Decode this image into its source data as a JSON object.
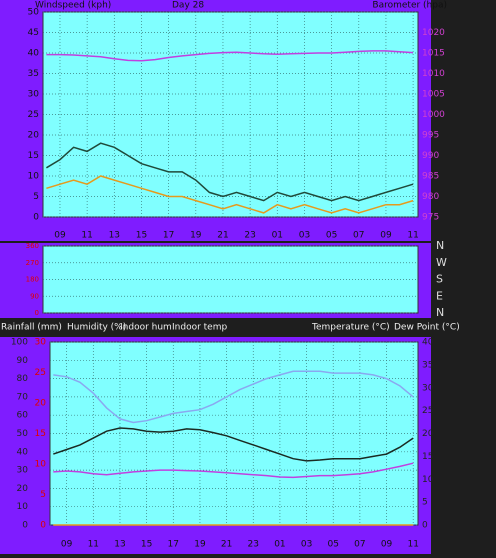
{
  "chart_data": [
    {
      "type": "line",
      "title": "Day 28",
      "ylabel": "Windspeed (kph)",
      "y2label": "Barometer (hpa)",
      "grid": true,
      "x": [
        -1,
        0,
        1,
        2,
        3,
        4,
        5,
        6,
        7,
        8,
        9,
        10,
        11,
        12,
        13,
        14,
        15,
        16,
        17,
        18,
        19,
        20,
        21,
        22,
        23,
        24,
        25,
        26
      ],
      "xlim": [
        -1.25,
        26.36
      ],
      "xticks": [
        {
          "value": 0,
          "label": "09"
        },
        {
          "value": 2,
          "label": "11"
        },
        {
          "value": 4,
          "label": "13"
        },
        {
          "value": 6,
          "label": "15"
        },
        {
          "value": 8,
          "label": "17"
        },
        {
          "value": 10,
          "label": "19"
        },
        {
          "value": 12,
          "label": "21"
        },
        {
          "value": 14,
          "label": "23"
        },
        {
          "value": 16,
          "label": "01"
        },
        {
          "value": 18,
          "label": "03"
        },
        {
          "value": 20,
          "label": "05"
        },
        {
          "value": 22,
          "label": "07"
        },
        {
          "value": 24,
          "label": "09"
        },
        {
          "value": 26,
          "label": "11"
        }
      ],
      "ylim": [
        0,
        50
      ],
      "yticks": [
        0,
        5,
        10,
        15,
        20,
        25,
        30,
        35,
        40,
        45,
        50
      ],
      "y2lim": [
        975,
        1025
      ],
      "y2ticks": [
        975,
        980,
        985,
        990,
        995,
        1000,
        1005,
        1010,
        1015,
        1020
      ],
      "series": [
        {
          "color": "#1f4a3a",
          "values": [
            12,
            14,
            17,
            16,
            18,
            17,
            15,
            13,
            12,
            11,
            11,
            9,
            6,
            5,
            6,
            5,
            4,
            6,
            5,
            6,
            5,
            4,
            5,
            4,
            5,
            6,
            7,
            8
          ]
        },
        {
          "color": "#e69a1c",
          "values": [
            7,
            8,
            9,
            8,
            10,
            9,
            8,
            7,
            6,
            5,
            5,
            4,
            3,
            2,
            3,
            2,
            1,
            3,
            2,
            3,
            2,
            1,
            2,
            1,
            2,
            3,
            3,
            4
          ]
        },
        {
          "color": "#c040e0",
          "axis": "y2",
          "values": [
            1014.6,
            1014.6,
            1014.5,
            1014.3,
            1014.1,
            1013.6,
            1013.2,
            1013.1,
            1013.4,
            1013.9,
            1014.3,
            1014.6,
            1014.9,
            1015.1,
            1015.2,
            1015.0,
            1014.8,
            1014.7,
            1014.8,
            1014.9,
            1015.0,
            1015.0,
            1015.2,
            1015.4,
            1015.5,
            1015.5,
            1015.3,
            1015.1
          ]
        }
      ]
    },
    {
      "type": "line",
      "grid": true,
      "ylim": [
        0,
        360
      ],
      "yticks": [
        0,
        90,
        180,
        270,
        360
      ],
      "y2lim": [
        0,
        360
      ],
      "y2ticks": [
        {
          "value": 0,
          "label": "N"
        },
        {
          "value": 90,
          "label": "E"
        },
        {
          "value": 180,
          "label": "S"
        },
        {
          "value": 270,
          "label": "W"
        },
        {
          "value": 360,
          "label": "N"
        }
      ]
    },
    {
      "type": "line",
      "grid": true,
      "labels": [
        "Indoor hum",
        "Indoor temp"
      ],
      "x": [
        -1,
        0,
        1,
        2,
        3,
        4,
        5,
        6,
        7,
        8,
        9,
        10,
        11,
        12,
        13,
        14,
        15,
        16,
        17,
        18,
        19,
        20,
        21,
        22,
        23,
        24,
        25,
        26
      ],
      "xlim": [
        -1.25,
        26.36
      ],
      "xticks": [
        {
          "value": 0,
          "label": "09"
        },
        {
          "value": 2,
          "label": "11"
        },
        {
          "value": 4,
          "label": "13"
        },
        {
          "value": 6,
          "label": "15"
        },
        {
          "value": 8,
          "label": "17"
        },
        {
          "value": 10,
          "label": "19"
        },
        {
          "value": 12,
          "label": "21"
        },
        {
          "value": 14,
          "label": "23"
        },
        {
          "value": 16,
          "label": "01"
        },
        {
          "value": 18,
          "label": "03"
        },
        {
          "value": 20,
          "label": "05"
        },
        {
          "value": 22,
          "label": "07"
        },
        {
          "value": 24,
          "label": "09"
        },
        {
          "value": 26,
          "label": "11"
        }
      ],
      "ylim": [
        0,
        100
      ],
      "yticks": [
        0,
        10,
        20,
        30,
        40,
        50,
        60,
        70,
        80,
        90,
        100
      ],
      "y2lim": [
        0,
        40
      ],
      "y2ticks": [
        0,
        5,
        10,
        15,
        20,
        25,
        30,
        35,
        40
      ],
      "y3lim": [
        0,
        30
      ],
      "y3ticks": [
        0,
        5,
        10,
        15,
        20,
        25,
        30
      ],
      "series": [
        {
          "name": "Rainfall (mm)",
          "color": "#e69a1c",
          "axis": "y3",
          "values": [
            0,
            0,
            0,
            0,
            0,
            0,
            0,
            0,
            0,
            0,
            0,
            0,
            0,
            0,
            0,
            0,
            0,
            0,
            0,
            0,
            0,
            0,
            0,
            0,
            0,
            0,
            0,
            0
          ]
        },
        {
          "name": "Humidity (%)",
          "color": "#8aa8f0",
          "values": [
            82,
            81,
            78,
            72,
            64,
            58,
            56,
            57,
            59,
            61,
            62,
            63,
            66,
            70,
            74,
            77,
            80,
            82,
            84,
            84,
            84,
            83,
            83,
            83,
            82,
            80,
            76,
            70
          ]
        },
        {
          "name": "Temperature (°C)",
          "color": "#1a2a22",
          "axis": "y2",
          "values": [
            15.5,
            16.5,
            17.5,
            19,
            20.5,
            21.2,
            21,
            20.5,
            20.3,
            20.5,
            21,
            20.8,
            20.2,
            19.5,
            18.5,
            17.5,
            16.5,
            15.5,
            14.5,
            14,
            14.2,
            14.5,
            14.5,
            14.5,
            15,
            15.5,
            17,
            19
          ]
        },
        {
          "name": "Dew Point (°C)",
          "color": "#c040e0",
          "axis": "y2",
          "values": [
            11.6,
            11.8,
            11.6,
            11.2,
            11,
            11.3,
            11.6,
            11.8,
            12,
            12,
            11.9,
            11.8,
            11.6,
            11.4,
            11.2,
            11,
            10.8,
            10.5,
            10.4,
            10.6,
            10.8,
            10.8,
            11,
            11.2,
            11.6,
            12.2,
            12.8,
            13.5
          ]
        }
      ]
    }
  ]
}
